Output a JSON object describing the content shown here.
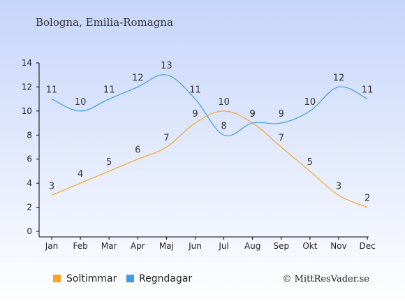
{
  "header": {
    "title": "Bologna, Emilia-Romagna"
  },
  "colors": {
    "background_top": "#c6d5fa",
    "background_bottom": "#ffffff",
    "sun": "#f5a623",
    "rain": "#3d9be9",
    "axis": "#000000"
  },
  "chart_data": {
    "type": "line",
    "categories": [
      "Jan",
      "Feb",
      "Mar",
      "Apr",
      "Maj",
      "Jun",
      "Jul",
      "Aug",
      "Sep",
      "Okt",
      "Nov",
      "Dec"
    ],
    "series": [
      {
        "name": "Soltimmar",
        "values": [
          3,
          4,
          5,
          6,
          7,
          9,
          10,
          9,
          7,
          5,
          3,
          2
        ],
        "color": "#f5a623"
      },
      {
        "name": "Regndagar",
        "values": [
          11,
          10,
          11,
          12,
          13,
          11,
          8,
          9,
          9,
          10,
          12,
          11
        ],
        "color": "#3d9be9"
      }
    ],
    "ylim": [
      0,
      14
    ],
    "yticks": [
      "0",
      "2",
      "4",
      "6",
      "8",
      "10",
      "12",
      "14"
    ],
    "grid": false,
    "legend": "bottom-left"
  },
  "legend": {
    "items": [
      "Soltimmar",
      "Regndagar"
    ]
  },
  "footer": {
    "credit": "© MittResVader.se"
  }
}
